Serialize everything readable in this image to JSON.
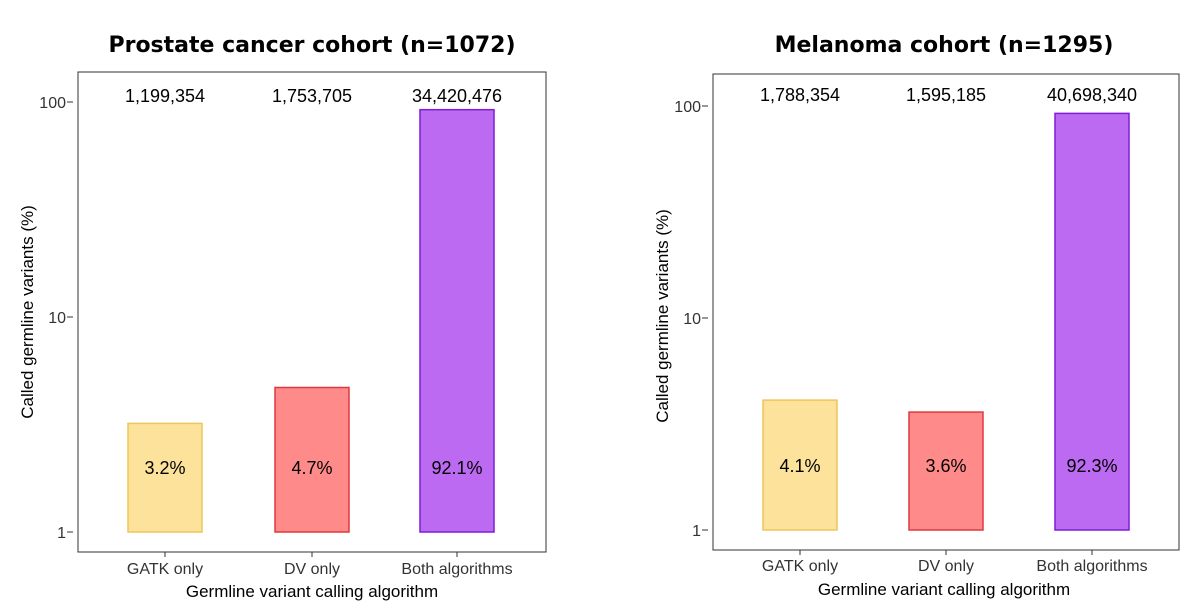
{
  "chart_data": [
    {
      "type": "bar",
      "title": "Prostate cancer cohort (n=1072)",
      "xlabel": "Germline variant calling algorithm",
      "ylabel": "Called germline variants (%)",
      "yscale": "log",
      "ylim": [
        1,
        100
      ],
      "yticks": [
        "1",
        "10",
        "100"
      ],
      "categories": [
        "GATK only",
        "DV only",
        "Both algorithms"
      ],
      "values": [
        3.2,
        4.7,
        92.1
      ],
      "value_labels": [
        "3.2%",
        "4.7%",
        "92.1%"
      ],
      "count_labels": [
        "1,199,354",
        "1,753,705",
        "34,420,476"
      ],
      "colors": {
        "fill": [
          "#FCE29A",
          "#FF8A8A",
          "#BD6AF2"
        ],
        "stroke": [
          "#EDC65A",
          "#E0393F",
          "#7E1CD6"
        ]
      },
      "grid": false,
      "legend": "none"
    },
    {
      "type": "bar",
      "title": "Melanoma cohort (n=1295)",
      "xlabel": "Germline variant calling algorithm",
      "ylabel": "Called germline variants (%)",
      "yscale": "log",
      "ylim": [
        1,
        100
      ],
      "yticks": [
        "1",
        "10",
        "100"
      ],
      "categories": [
        "GATK only",
        "DV only",
        "Both algorithms"
      ],
      "values": [
        4.1,
        3.6,
        92.3
      ],
      "value_labels": [
        "4.1%",
        "3.6%",
        "92.3%"
      ],
      "count_labels": [
        "1,788,354",
        "1,595,185",
        "40,698,340"
      ],
      "colors": {
        "fill": [
          "#FCE29A",
          "#FF8A8A",
          "#BD6AF2"
        ],
        "stroke": [
          "#EDC65A",
          "#E0393F",
          "#7E1CD6"
        ]
      },
      "grid": false,
      "legend": "none"
    }
  ]
}
